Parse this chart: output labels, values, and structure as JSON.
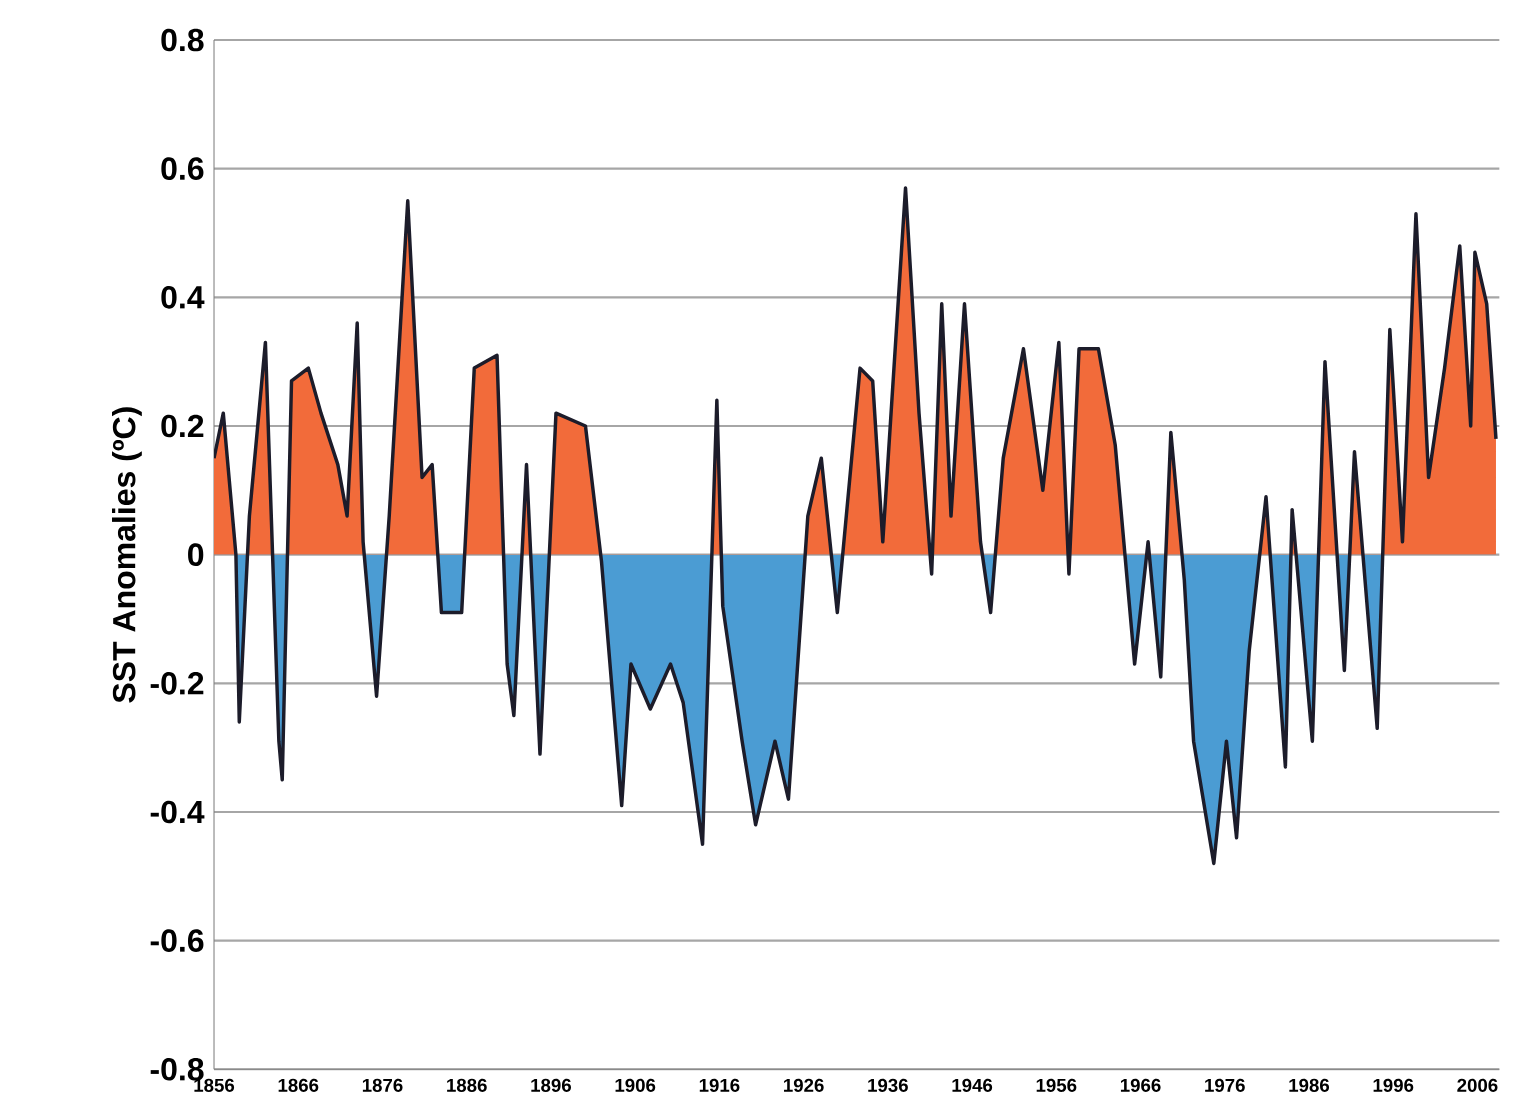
{
  "chart_data": {
    "type": "area",
    "ylabel": "SST Anomalies (ºC)",
    "xlim": [
      1856,
      2008.6
    ],
    "ylim": [
      -0.8,
      0.8
    ],
    "xticks": [
      1856,
      1866,
      1876,
      1886,
      1896,
      1906,
      1916,
      1926,
      1936,
      1946,
      1956,
      1966,
      1976,
      1986,
      1996,
      2006
    ],
    "yticks": [
      -0.8,
      -0.6,
      -0.4,
      -0.2,
      0,
      0.2,
      0.4,
      0.6,
      0.8
    ],
    "grid": "y",
    "series": [
      {
        "color": "#1c1c2a",
        "colors": [
          "#f26b3a",
          "#f26b3a",
          "#f26b3a",
          "#4b9cd3",
          "#f26b3a",
          "#f26b3a",
          "#4b9cd3",
          "#4b9cd3",
          "#f26b3a",
          "#f26b3a",
          "#f26b3a",
          "#f26b3a",
          "#f26b3a",
          "#f26b3a",
          "#f26b3a",
          "#4b9cd3",
          "#f26b3a",
          "#f26b3a",
          "#f26b3a",
          "#f26b3a",
          "#4b9cd3",
          "#4b9cd3",
          "#f26b3a",
          "#f26b3a",
          "#4b9cd3",
          "#4b9cd3",
          "#f26b3a",
          "#4b9cd3",
          "#f26b3a",
          "#f26b3a",
          "#4b9cd3",
          "#4b9cd3",
          "#4b9cd3",
          "#4b9cd3",
          "#4b9cd3",
          "#4b9cd3",
          "#4b9cd3",
          "#f26b3a",
          "#4b9cd3",
          "#4b9cd3",
          "#4b9cd3",
          "#4b9cd3",
          "#4b9cd3",
          "#f26b3a",
          "#f26b3a",
          "#4b9cd3",
          "#f26b3a",
          "#f26b3a",
          "#f26b3a",
          "#f26b3a",
          "#f26b3a",
          "#4b9cd3",
          "#f26b3a",
          "#f26b3a",
          "#f26b3a",
          "#f26b3a",
          "#4b9cd3",
          "#f26b3a",
          "#f26b3a",
          "#f26b3a",
          "#f26b3a",
          "#4b9cd3",
          "#f26b3a",
          "#f26b3a",
          "#f26b3a",
          "#4b9cd3",
          "#f26b3a",
          "#4b9cd3",
          "#f26b3a",
          "#4b9cd3",
          "#4b9cd3",
          "#4b9cd3",
          "#4b9cd3",
          "#4b9cd3",
          "#4b9cd3",
          "#f26b3a",
          "#4b9cd3",
          "#f26b3a",
          "#4b9cd3",
          "#f26b3a",
          "#4b9cd3",
          "#f26b3a",
          "#4b9cd3",
          "#f26b3a",
          "#f26b3a",
          "#f26b3a",
          "#f26b3a",
          "#f26b3a",
          "#f26b3a",
          "#f26b3a",
          "#f26b3a",
          "#f26b3a",
          "#f26b3a"
        ],
        "x": [
          1856,
          1857.1,
          1858.6,
          1859.0,
          1860.2,
          1862.1,
          1863.7,
          1864.1,
          1865.2,
          1867.2,
          1868.7,
          1870.7,
          1871.8,
          1873.0,
          1873.7,
          1875.3,
          1876.8,
          1879.0,
          1880.7,
          1881.9,
          1883.0,
          1885.4,
          1886.9,
          1889.6,
          1890.8,
          1891.6,
          1893.1,
          1894.7,
          1896.6,
          1900.1,
          1902.0,
          1904.4,
          1905.5,
          1907.8,
          1910.2,
          1911.7,
          1914.0,
          1915.7,
          1916.4,
          1918.7,
          1920.3,
          1922.6,
          1924.2,
          1926.5,
          1928.1,
          1930.0,
          1932.7,
          1934.2,
          1935.4,
          1938.1,
          1939.7,
          1941.2,
          1942.4,
          1943.5,
          1945.1,
          1947.0,
          1948.2,
          1949.7,
          1952.1,
          1954.4,
          1956.3,
          1957.5,
          1958.7,
          1961.0,
          1963.0,
          1965.3,
          1966.9,
          1968.4,
          1969.6,
          1971.2,
          1972.3,
          1974.7,
          1976.2,
          1977.4,
          1978.9,
          1980.9,
          1983.2,
          1984.0,
          1986.4,
          1987.9,
          1990.2,
          1991.4,
          1994.1,
          1995.6,
          1997.1,
          1998.7,
          2000.2,
          2002.1,
          2003.9,
          2005.2,
          2005.7,
          2007.1,
          2008.2
        ],
        "values": [
          0.15,
          0.22,
          0.0,
          -0.26,
          0.06,
          0.33,
          -0.29,
          -0.35,
          0.27,
          0.29,
          0.22,
          0.14,
          0.06,
          0.36,
          0.02,
          -0.22,
          0.06,
          0.55,
          0.12,
          0.14,
          -0.09,
          -0.09,
          0.29,
          0.31,
          -0.17,
          -0.25,
          0.14,
          -0.31,
          0.22,
          0.2,
          -0.01,
          -0.39,
          -0.17,
          -0.24,
          -0.17,
          -0.23,
          -0.45,
          0.24,
          -0.08,
          -0.29,
          -0.42,
          -0.29,
          -0.38,
          0.06,
          0.15,
          -0.09,
          0.29,
          0.27,
          0.02,
          0.57,
          0.22,
          -0.03,
          0.39,
          0.06,
          0.39,
          0.02,
          -0.09,
          0.15,
          0.32,
          0.1,
          0.33,
          -0.03,
          0.32,
          0.32,
          0.17,
          -0.17,
          0.02,
          -0.19,
          0.19,
          -0.04,
          -0.29,
          -0.48,
          -0.29,
          -0.44,
          -0.15,
          0.09,
          -0.33,
          0.07,
          -0.29,
          0.3,
          -0.18,
          0.16,
          -0.27,
          0.35,
          0.02,
          0.53,
          0.12,
          0.29,
          0.48,
          0.2,
          0.47,
          0.39,
          0.18
        ]
      }
    ]
  }
}
